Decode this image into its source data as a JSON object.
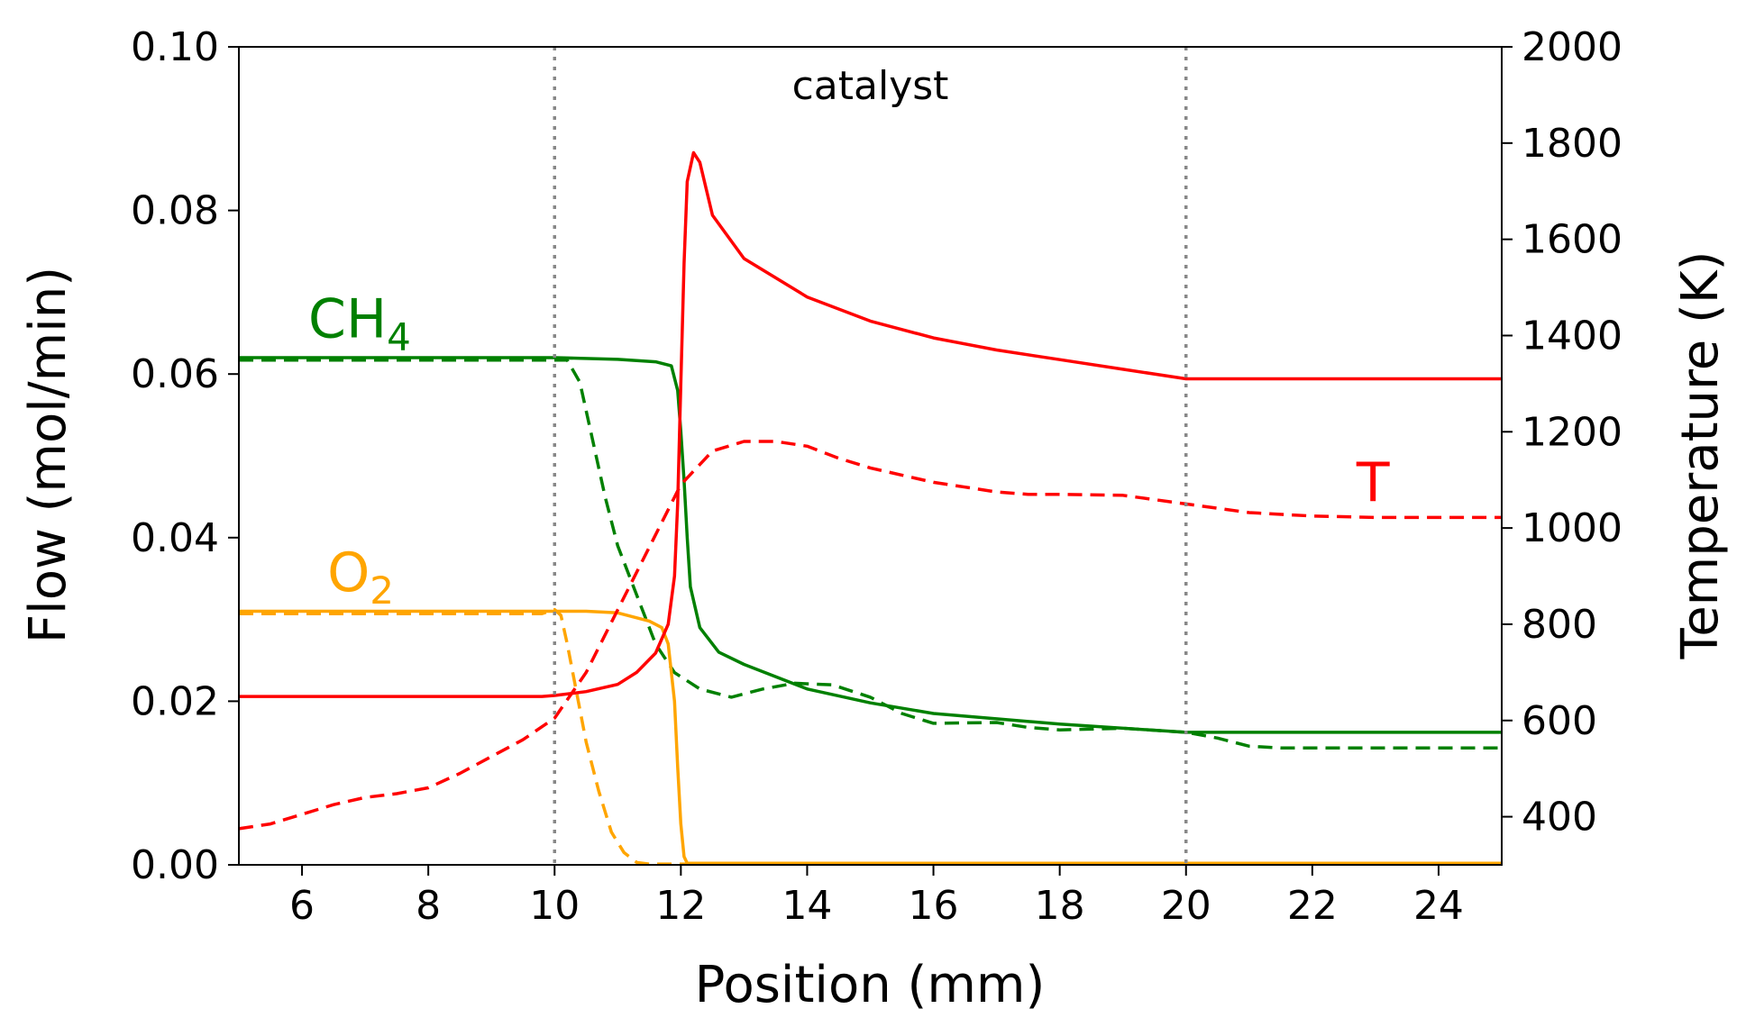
{
  "chart_data": {
    "type": "line",
    "xlabel": "Position (mm)",
    "ylabel_left": "Flow (mol/min)",
    "ylabel_right": "Temperature (K)",
    "xlim": [
      5,
      25
    ],
    "ylim_left": [
      0,
      0.1
    ],
    "ylim_right": [
      300,
      2000
    ],
    "x_ticks": [
      6,
      8,
      10,
      12,
      14,
      16,
      18,
      20,
      22,
      24
    ],
    "y_left_ticks": [
      "0.00",
      "0.02",
      "0.04",
      "0.06",
      "0.08",
      "0.10"
    ],
    "y_right_ticks": [
      400,
      600,
      800,
      1000,
      1200,
      1400,
      1600,
      1800,
      2000
    ],
    "catalyst_bounds": [
      10,
      20
    ],
    "catalyst_label": "catalyst",
    "annotations": {
      "ch4": {
        "base": "CH",
        "sub": "4",
        "x": 6.1,
        "y": 0.0645
      },
      "o2": {
        "base": "O",
        "sub": "2",
        "x": 6.4,
        "y": 0.0335
      },
      "t": {
        "text": "T",
        "x": 22.7,
        "y": 0.0445
      }
    },
    "colors": {
      "ch4": "#008000",
      "o2": "#ffa500",
      "t": "#ff0000",
      "catalyst_lines": "#888888",
      "axes": "#000000"
    },
    "series": [
      {
        "key": "ch4_solid",
        "axis": "left",
        "color": "#008000",
        "dash": false,
        "points": [
          [
            5,
            0.062
          ],
          [
            10,
            0.062
          ],
          [
            11,
            0.0618
          ],
          [
            11.6,
            0.0615
          ],
          [
            11.85,
            0.061
          ],
          [
            11.95,
            0.058
          ],
          [
            12.0,
            0.053
          ],
          [
            12.05,
            0.047
          ],
          [
            12.1,
            0.04
          ],
          [
            12.15,
            0.034
          ],
          [
            12.3,
            0.029
          ],
          [
            12.6,
            0.026
          ],
          [
            13.0,
            0.0245
          ],
          [
            14,
            0.0215
          ],
          [
            15,
            0.0198
          ],
          [
            16,
            0.0185
          ],
          [
            18,
            0.0172
          ],
          [
            20,
            0.0162
          ],
          [
            25,
            0.0162
          ]
        ]
      },
      {
        "key": "ch4_dashed",
        "axis": "left",
        "color": "#008000",
        "dash": true,
        "points": [
          [
            5,
            0.0617
          ],
          [
            10,
            0.0617
          ],
          [
            10.2,
            0.0617
          ],
          [
            10.4,
            0.059
          ],
          [
            10.6,
            0.052
          ],
          [
            10.8,
            0.045
          ],
          [
            11.0,
            0.039
          ],
          [
            11.3,
            0.033
          ],
          [
            11.6,
            0.027
          ],
          [
            11.9,
            0.0235
          ],
          [
            12.3,
            0.0215
          ],
          [
            12.8,
            0.0205
          ],
          [
            13.3,
            0.0215
          ],
          [
            13.8,
            0.0222
          ],
          [
            14.4,
            0.022
          ],
          [
            15.0,
            0.0205
          ],
          [
            15.5,
            0.0185
          ],
          [
            16.0,
            0.0173
          ],
          [
            17.0,
            0.0174
          ],
          [
            17.5,
            0.0168
          ],
          [
            18.0,
            0.0165
          ],
          [
            19.0,
            0.0167
          ],
          [
            20.0,
            0.0162
          ],
          [
            20.5,
            0.0155
          ],
          [
            21.0,
            0.0145
          ],
          [
            21.5,
            0.0143
          ],
          [
            25,
            0.0143
          ]
        ]
      },
      {
        "key": "o2_solid",
        "axis": "left",
        "color": "#ffa500",
        "dash": false,
        "points": [
          [
            5,
            0.031
          ],
          [
            10,
            0.031
          ],
          [
            10.5,
            0.031
          ],
          [
            11,
            0.0308
          ],
          [
            11.5,
            0.0298
          ],
          [
            11.7,
            0.029
          ],
          [
            11.8,
            0.027
          ],
          [
            11.9,
            0.02
          ],
          [
            11.95,
            0.012
          ],
          [
            12.0,
            0.005
          ],
          [
            12.05,
            0.001
          ],
          [
            12.1,
            0.0002
          ],
          [
            25,
            0.0002
          ]
        ]
      },
      {
        "key": "o2_dashed",
        "axis": "left",
        "color": "#ffa500",
        "dash": true,
        "points": [
          [
            5,
            0.0307
          ],
          [
            9.8,
            0.0307
          ],
          [
            10.0,
            0.0312
          ],
          [
            10.1,
            0.0305
          ],
          [
            10.2,
            0.027
          ],
          [
            10.35,
            0.021
          ],
          [
            10.5,
            0.015
          ],
          [
            10.7,
            0.009
          ],
          [
            10.9,
            0.004
          ],
          [
            11.1,
            0.0015
          ],
          [
            11.3,
            0.0003
          ],
          [
            11.5,
            0.0001
          ],
          [
            25,
            0.0001
          ]
        ]
      },
      {
        "key": "t_solid",
        "axis": "right",
        "color": "#ff0000",
        "dash": false,
        "points": [
          [
            5,
            650
          ],
          [
            9.8,
            650
          ],
          [
            10,
            652
          ],
          [
            10.5,
            660
          ],
          [
            11,
            675
          ],
          [
            11.3,
            700
          ],
          [
            11.6,
            740
          ],
          [
            11.8,
            800
          ],
          [
            11.9,
            900
          ],
          [
            11.95,
            1050
          ],
          [
            12.0,
            1300
          ],
          [
            12.05,
            1550
          ],
          [
            12.1,
            1720
          ],
          [
            12.2,
            1780
          ],
          [
            12.3,
            1760
          ],
          [
            12.5,
            1650
          ],
          [
            13,
            1560
          ],
          [
            14,
            1480
          ],
          [
            15,
            1430
          ],
          [
            16,
            1395
          ],
          [
            17,
            1370
          ],
          [
            18,
            1350
          ],
          [
            19,
            1330
          ],
          [
            20,
            1310
          ],
          [
            25,
            1310
          ]
        ]
      },
      {
        "key": "t_dashed",
        "axis": "right",
        "color": "#ff0000",
        "dash": true,
        "points": [
          [
            5,
            375
          ],
          [
            5.5,
            385
          ],
          [
            6.0,
            405
          ],
          [
            6.5,
            425
          ],
          [
            7.0,
            440
          ],
          [
            7.5,
            448
          ],
          [
            8.0,
            460
          ],
          [
            8.5,
            490
          ],
          [
            9.0,
            525
          ],
          [
            9.5,
            560
          ],
          [
            10.0,
            605
          ],
          [
            10.5,
            700
          ],
          [
            11.0,
            830
          ],
          [
            11.5,
            960
          ],
          [
            12.0,
            1090
          ],
          [
            12.5,
            1160
          ],
          [
            13.0,
            1180
          ],
          [
            13.5,
            1180
          ],
          [
            14.0,
            1170
          ],
          [
            14.5,
            1145
          ],
          [
            15.0,
            1125
          ],
          [
            15.5,
            1110
          ],
          [
            16.0,
            1095
          ],
          [
            16.5,
            1085
          ],
          [
            17.0,
            1075
          ],
          [
            17.5,
            1070
          ],
          [
            18.0,
            1070
          ],
          [
            19.0,
            1068
          ],
          [
            20.0,
            1050
          ],
          [
            21.0,
            1032
          ],
          [
            22.0,
            1025
          ],
          [
            23.0,
            1022
          ],
          [
            25,
            1022
          ]
        ]
      }
    ]
  }
}
